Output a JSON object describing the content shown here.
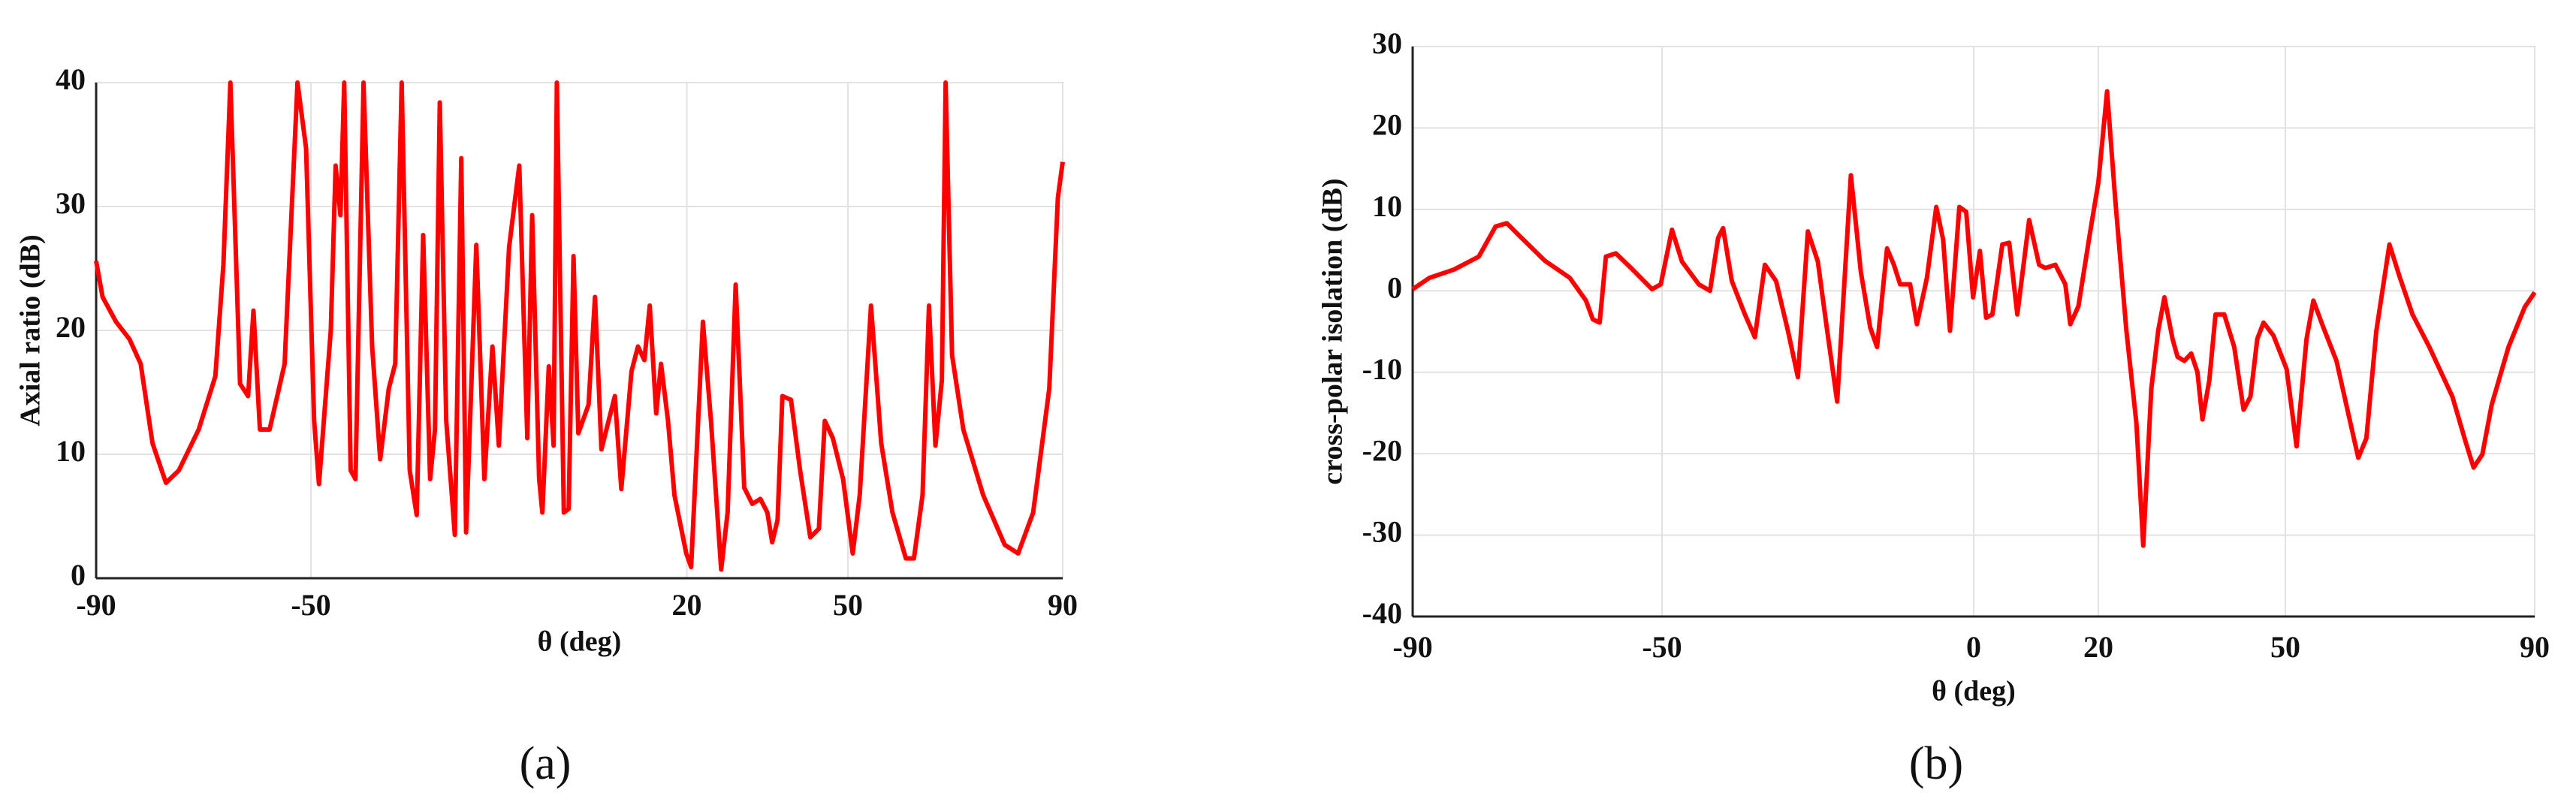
{
  "chart_data": [
    {
      "type": "line",
      "caption": "(a)",
      "xlabel": "θ (deg)",
      "ylabel": "Axial ratio (dB)",
      "color": "#ff0000",
      "grid": true,
      "xlim": [
        -90,
        90
      ],
      "ylim": [
        0,
        40
      ],
      "xticks": [
        -90,
        -50,
        20,
        50,
        90
      ],
      "yticks": [
        0,
        10,
        20,
        30,
        40
      ],
      "x": [
        -90,
        -88.8,
        -86.3,
        -83.8,
        -81.7,
        -79.5,
        -77,
        -74.6,
        -70.9,
        -67.8,
        -66.3,
        -65,
        -63.2,
        -61.7,
        -60.7,
        -59.5,
        -57.7,
        -54.9,
        -52.5,
        -50.9,
        -49.4,
        -48.5,
        -46.3,
        -45.4,
        -44.5,
        -43.8,
        -42.6,
        -41.7,
        -40.2,
        -38.6,
        -37.1,
        -35.5,
        -34.3,
        -33.1,
        -31.6,
        -30.3,
        -29.1,
        -27.8,
        -26.9,
        -26,
        -24.8,
        -23.2,
        -22,
        -21.1,
        -19.2,
        -17.7,
        -16.2,
        -15,
        -13.1,
        -11.2,
        -9.7,
        -8.8,
        -7.5,
        -6.9,
        -5.7,
        -4.8,
        -4.2,
        -2.9,
        -2,
        -1.1,
        -0.2,
        1.7,
        2.9,
        4.1,
        6.6,
        7.8,
        9.7,
        10.9,
        12.1,
        13.1,
        14.3,
        15.2,
        16.5,
        17.7,
        19.9,
        20.8,
        23,
        24.5,
        26.4,
        27.6,
        29.1,
        30.7,
        32.2,
        33.7,
        35,
        35.9,
        36.9,
        37.8,
        39.4,
        41.1,
        43,
        44.6,
        45.7,
        47.2,
        49.1,
        50.9,
        52.2,
        54.3,
        56.2,
        58.3,
        60.8,
        62.3,
        63.9,
        65.1,
        66.3,
        67.5,
        68.2,
        69.4,
        71.5,
        75.2,
        79.2,
        81.7,
        84.5,
        87.5,
        89.1,
        90
      ],
      "values": [
        25.6,
        22.7,
        20.7,
        19.3,
        17.3,
        10.9,
        7.7,
        8.7,
        12,
        16.3,
        25.3,
        40,
        15.7,
        14.7,
        21.6,
        12,
        12,
        17.3,
        40,
        34.7,
        12.7,
        7.6,
        20,
        33.3,
        29.3,
        40,
        8.7,
        8,
        40,
        18.7,
        9.6,
        15.3,
        17.3,
        40,
        8.7,
        5.1,
        27.7,
        8,
        12,
        38.4,
        12.7,
        3.5,
        33.9,
        3.7,
        26.9,
        8,
        18.7,
        10.7,
        26.7,
        33.3,
        11.3,
        29.3,
        8,
        5.3,
        17.1,
        10.7,
        40,
        5.3,
        5.6,
        26,
        11.7,
        14,
        22.7,
        10.4,
        14.7,
        7.2,
        16.7,
        18.7,
        17.6,
        22,
        13.3,
        17.3,
        12.7,
        6.7,
        2,
        0.9,
        20.7,
        12.7,
        0.7,
        5.3,
        23.7,
        7.3,
        6,
        6.4,
        5.3,
        2.9,
        4.7,
        14.7,
        14.4,
        8.7,
        3.3,
        4,
        12.7,
        11.3,
        8,
        2,
        6.7,
        22,
        10.9,
        5.3,
        1.6,
        1.6,
        6.7,
        22,
        10.7,
        16,
        40,
        18,
        12,
        6.7,
        2.7,
        2,
        5.3,
        15.3,
        30.7,
        33.6
      ]
    },
    {
      "type": "line",
      "caption": "(b)",
      "xlabel": "θ (deg)",
      "ylabel": "cross-polar isolation (dB)",
      "color": "#ff0000",
      "grid": true,
      "xlim": [
        -90,
        90
      ],
      "ylim": [
        -40,
        30
      ],
      "xticks": [
        -90,
        -50,
        0,
        20,
        50,
        90
      ],
      "yticks": [
        -40,
        -30,
        -20,
        -10,
        0,
        10,
        20,
        30
      ],
      "x": [
        -90,
        -87.3,
        -83.4,
        -79.4,
        -76.7,
        -74.9,
        -72.8,
        -68.8,
        -64.8,
        -62.2,
        -61.1,
        -60,
        -59,
        -57.4,
        -54.7,
        -51.6,
        -50.2,
        -48.4,
        -46.8,
        -44.1,
        -42.3,
        -41,
        -40.2,
        -38.8,
        -36.7,
        -35.1,
        -33.5,
        -31.7,
        -29.8,
        -28.2,
        -26.6,
        -25,
        -23.5,
        -21.9,
        -19.7,
        -18.1,
        -16.6,
        -15.5,
        -13.9,
        -12.8,
        -11.8,
        -10.2,
        -9.1,
        -7.5,
        -6,
        -4.9,
        -3.8,
        -2.3,
        -1.2,
        -0.1,
        1,
        2,
        3,
        4.6,
        5.7,
        7,
        8.9,
        10.5,
        11.5,
        13.1,
        14.7,
        15.5,
        16.8,
        18.7,
        20,
        21.4,
        22.7,
        24.5,
        26.1,
        27.2,
        28.5,
        29.6,
        30.6,
        31.9,
        32.7,
        33.8,
        34.9,
        35.9,
        36.7,
        37.8,
        38.8,
        40.2,
        41.8,
        43.3,
        44.4,
        45.5,
        46.5,
        48.1,
        50.2,
        51.8,
        53.4,
        54.5,
        56.1,
        58.2,
        60.4,
        61.7,
        63,
        64.6,
        66.7,
        68.3,
        70.4,
        73.1,
        76.8,
        78.9,
        80.2,
        81.6,
        83.1,
        85.8,
        88.4,
        90
      ],
      "values": [
        0.2,
        1.6,
        2.6,
        4.2,
        7.9,
        8.3,
        6.7,
        3.7,
        1.6,
        -1.2,
        -3.5,
        -3.9,
        4.2,
        4.6,
        2.6,
        0.2,
        0.8,
        7.5,
        3.6,
        0.8,
        0,
        6.5,
        7.7,
        1.2,
        -2.9,
        -5.7,
        3.2,
        1.2,
        -4.9,
        -10.6,
        7.3,
        3.6,
        -4.9,
        -13.6,
        14.2,
        2.3,
        -4.5,
        -6.9,
        5.2,
        3.2,
        0.8,
        0.8,
        -4.1,
        1.6,
        10.3,
        6.3,
        -4.9,
        10.3,
        9.7,
        -0.8,
        4.9,
        -3.3,
        -2.9,
        5.7,
        5.9,
        -2.9,
        8.7,
        3.2,
        2.8,
        3.2,
        0.8,
        -4.1,
        -1.9,
        7.3,
        13.3,
        24.5,
        11.3,
        -4.9,
        -16.2,
        -31.3,
        -12,
        -4.9,
        -0.8,
        -5.9,
        -8.1,
        -8.6,
        -7.7,
        -10,
        -15.8,
        -11,
        -2.9,
        -2.9,
        -6.9,
        -14.6,
        -13,
        -5.9,
        -3.9,
        -5.5,
        -9.6,
        -19.1,
        -5.9,
        -1.2,
        -4.5,
        -8.6,
        -16.1,
        -20.5,
        -18.1,
        -4.9,
        5.7,
        1.8,
        -2.9,
        -6.9,
        -13,
        -18.5,
        -21.7,
        -20.1,
        -14,
        -6.9,
        -2,
        -0.2
      ]
    }
  ]
}
